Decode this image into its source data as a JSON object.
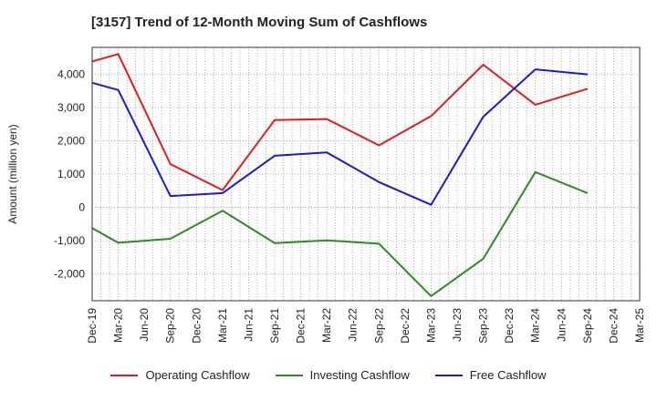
{
  "chart_data": {
    "type": "line",
    "title": "[3157]  Trend of 12-Month Moving Sum of Cashflows",
    "ylabel": "Amount (million yen)",
    "xlabel": "",
    "ylim": [
      -2800,
      4800
    ],
    "yticks": [
      -2000,
      -1000,
      0,
      1000,
      2000,
      3000,
      4000
    ],
    "ytick_labels": [
      "-2,000",
      "-1,000",
      "0",
      "1,000",
      "2,000",
      "3,000",
      "4,000"
    ],
    "categories": [
      "Dec-19",
      "Mar-20",
      "Jun-20",
      "Sep-20",
      "Dec-20",
      "Mar-21",
      "Jun-21",
      "Sep-21",
      "Dec-21",
      "Mar-22",
      "Jun-22",
      "Sep-22",
      "Dec-22",
      "Mar-23",
      "Jun-23",
      "Sep-23",
      "Dec-23",
      "Mar-24",
      "Jun-24",
      "Sep-24",
      "Dec-24",
      "Mar-25"
    ],
    "grid": true,
    "legend_position": "bottom",
    "series": [
      {
        "name": "Operating Cashflow",
        "color": "#e41a1c",
        "values": [
          4380,
          4600,
          null,
          1300,
          null,
          520,
          null,
          2620,
          null,
          2650,
          null,
          1860,
          null,
          2740,
          null,
          4280,
          null,
          3080,
          null,
          3560,
          null,
          null
        ]
      },
      {
        "name": "Investing Cashflow",
        "color": "#2e8b22",
        "values": [
          -620,
          -1060,
          null,
          -940,
          null,
          -100,
          null,
          -1070,
          null,
          -990,
          null,
          -1090,
          null,
          -2660,
          null,
          -1540,
          null,
          1060,
          null,
          430,
          null,
          null
        ]
      },
      {
        "name": "Free Cashflow",
        "color": "#1a1ad6",
        "values": [
          3740,
          3520,
          null,
          340,
          null,
          430,
          null,
          1550,
          null,
          1650,
          null,
          760,
          null,
          80,
          null,
          2720,
          null,
          4140,
          null,
          3990,
          null,
          null
        ]
      }
    ]
  }
}
